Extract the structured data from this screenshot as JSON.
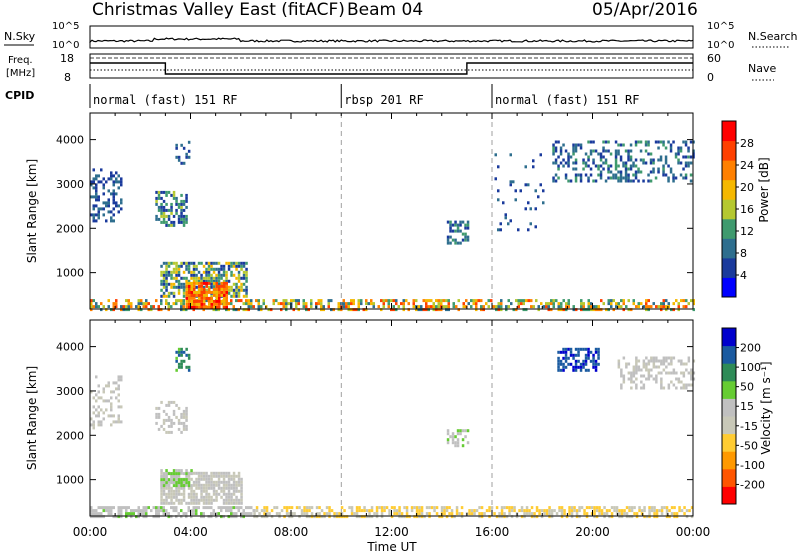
{
  "header": {
    "title": "Christmas Valley East (fitACF)",
    "beam": "Beam 04",
    "date": "05/Apr/2016"
  },
  "labels": {
    "nsky": "N.Sky",
    "nsearch": "N.Search",
    "freq_line1": "Freq.",
    "freq_line2": "[MHz]",
    "nave": "Nave",
    "cpid": "CPID",
    "ten5": "10^5",
    "ten0": "10^0",
    "freq_hi": "18",
    "freq_lo": "8",
    "nave_hi": "60",
    "nave_lo": "0"
  },
  "cpid_segments": [
    {
      "start": 0,
      "end": 10,
      "label": "normal (fast) 151 RF"
    },
    {
      "start": 10,
      "end": 16,
      "label": "rbsp 201 RF"
    },
    {
      "start": 16,
      "end": 24,
      "label": "normal (fast) 151 RF"
    }
  ],
  "colors": {
    "power": [
      "#0000ff",
      "#1a3a9c",
      "#2e6e8e",
      "#3f9a6e",
      "#b5c830",
      "#f5b800",
      "#ff8000",
      "#ff4000",
      "#ff0000"
    ],
    "velocity": [
      "#ff0000",
      "#ff5500",
      "#ff9900",
      "#ffcc33",
      "#c8c8b8",
      "#c0c0c0",
      "#66cc33",
      "#2e8b57",
      "#1a5aa0",
      "#0000cc"
    ]
  },
  "chart_data": [
    {
      "type": "heatmap",
      "name": "power",
      "xlabel": "",
      "ylabel": "Slant Range [km]",
      "xlim": [
        0,
        24
      ],
      "ylim": [
        180,
        4600
      ],
      "yticks": [
        "1000",
        "2000",
        "3000",
        "4000"
      ],
      "colorbar_label": "Power [dB]",
      "colorbar_ticks": [
        "4",
        "8",
        "12",
        "16",
        "20",
        "24",
        "28"
      ],
      "clim": [
        0,
        32
      ],
      "regions": [
        {
          "t0": 0,
          "t1": 24,
          "r0": 200,
          "r1": 420,
          "v0": 8,
          "v1": 28,
          "density": 0.55
        },
        {
          "t0": 2.8,
          "t1": 6.2,
          "r0": 500,
          "r1": 1300,
          "v0": 4,
          "v1": 20,
          "density": 0.7
        },
        {
          "t0": 3.8,
          "t1": 5.4,
          "r0": 250,
          "r1": 800,
          "v0": 18,
          "v1": 30,
          "density": 0.85
        },
        {
          "t0": 2.6,
          "t1": 3.8,
          "r0": 2100,
          "r1": 2900,
          "v0": 4,
          "v1": 16,
          "density": 0.5
        },
        {
          "t0": 0,
          "t1": 1.2,
          "r0": 2200,
          "r1": 3400,
          "v0": 4,
          "v1": 10,
          "density": 0.35
        },
        {
          "t0": 3.4,
          "t1": 3.9,
          "r0": 3500,
          "r1": 4000,
          "v0": 4,
          "v1": 10,
          "density": 0.4
        },
        {
          "t0": 14.2,
          "t1": 15.0,
          "r0": 1700,
          "r1": 2200,
          "v0": 4,
          "v1": 14,
          "density": 0.6
        },
        {
          "t0": 18.4,
          "t1": 24,
          "r0": 3100,
          "r1": 4000,
          "v0": 4,
          "v1": 12,
          "density": 0.35
        },
        {
          "t0": 16.0,
          "t1": 18.0,
          "r0": 2000,
          "r1": 3800,
          "v0": 4,
          "v1": 10,
          "density": 0.08
        }
      ]
    },
    {
      "type": "heatmap",
      "name": "velocity",
      "xlabel": "Time UT",
      "ylabel": "Slant Range [km]",
      "xlim": [
        0,
        24
      ],
      "ylim": [
        180,
        4600
      ],
      "xticks": [
        "00:00",
        "04:00",
        "08:00",
        "12:00",
        "16:00",
        "20:00",
        "00:00"
      ],
      "yticks": [
        "1000",
        "2000",
        "3000",
        "4000"
      ],
      "colorbar_label": "Velocity [m s⁻¹]",
      "colorbar_ticks": [
        "-200",
        "-100",
        "-50",
        "-15",
        "15",
        "50",
        "100",
        "200"
      ],
      "clim": [
        -250,
        250
      ],
      "regions": [
        {
          "t0": 6.5,
          "t1": 24,
          "r0": 200,
          "r1": 420,
          "v0": -80,
          "v1": -20,
          "density": 0.6
        },
        {
          "t0": 0,
          "t1": 6.5,
          "r0": 200,
          "r1": 420,
          "v0": 0,
          "v1": 60,
          "density": 0.6
        },
        {
          "t0": 2.8,
          "t1": 6.0,
          "r0": 500,
          "r1": 1200,
          "v0": -10,
          "v1": 10,
          "density": 0.75
        },
        {
          "t0": 2.8,
          "t1": 4.0,
          "r0": 900,
          "r1": 1300,
          "v0": 30,
          "v1": 70,
          "density": 0.7
        },
        {
          "t0": 2.6,
          "t1": 3.8,
          "r0": 2100,
          "r1": 2800,
          "v0": -5,
          "v1": 10,
          "density": 0.45
        },
        {
          "t0": 0,
          "t1": 1.2,
          "r0": 2200,
          "r1": 3400,
          "v0": -5,
          "v1": 10,
          "density": 0.3
        },
        {
          "t0": 3.4,
          "t1": 3.9,
          "r0": 3500,
          "r1": 4000,
          "v0": 80,
          "v1": 200,
          "density": 0.4
        },
        {
          "t0": 14.2,
          "t1": 15.0,
          "r0": 1800,
          "r1": 2200,
          "v0": 20,
          "v1": 60,
          "density": 0.55
        },
        {
          "t0": 18.6,
          "t1": 20.2,
          "r0": 3500,
          "r1": 4000,
          "v0": 150,
          "v1": 240,
          "density": 0.55
        },
        {
          "t0": 21.0,
          "t1": 24,
          "r0": 3100,
          "r1": 3800,
          "v0": -5,
          "v1": 10,
          "density": 0.4
        }
      ]
    }
  ]
}
